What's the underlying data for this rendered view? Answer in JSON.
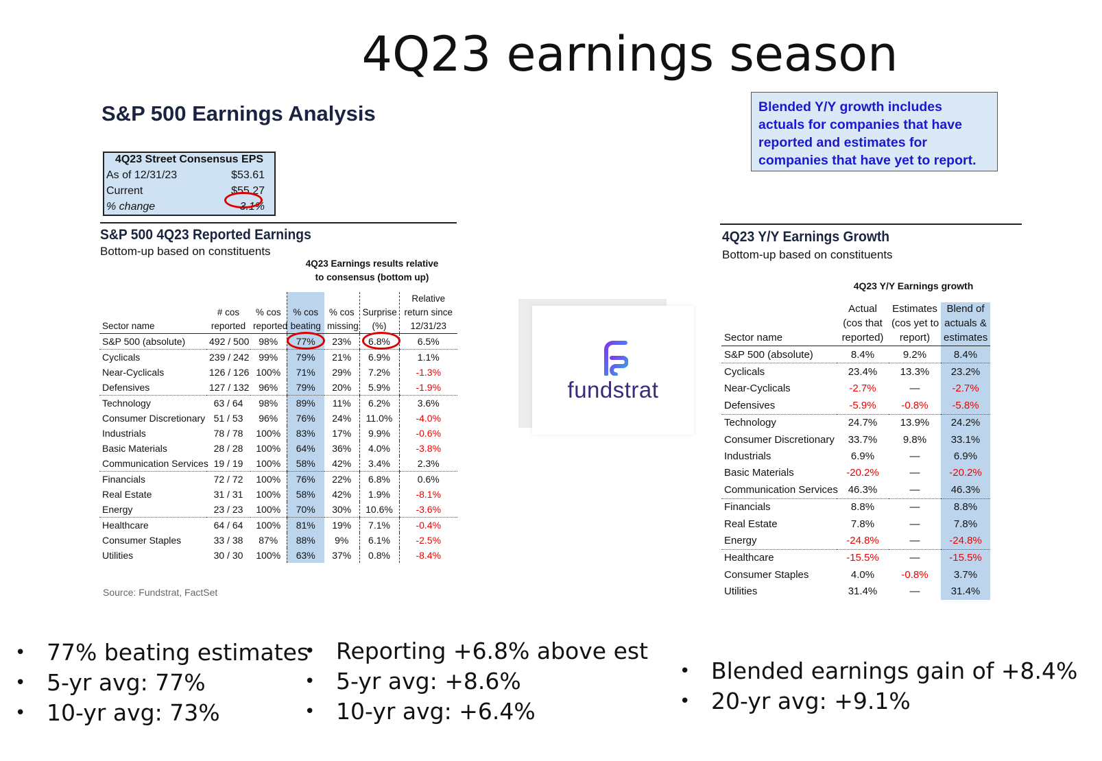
{
  "slide_title": "4Q23 earnings season",
  "left": {
    "analysis_title": "S&P 500 Earnings Analysis",
    "consensus": {
      "header": "4Q23 Street Consensus EPS",
      "rows": [
        {
          "label": "As of 12/31/23",
          "value": "$53.61"
        },
        {
          "label": "Current",
          "value": "$55.27"
        },
        {
          "label": "% change",
          "value": "3.1%"
        }
      ]
    },
    "reported": {
      "title": "S&P 500 4Q23 Reported Earnings",
      "subtitle": "Bottom-up based on constituents",
      "group_header": "4Q23 Earnings results relative to consensus (bottom up)",
      "group_header_line1": "4Q23 Earnings results relative",
      "group_header_line2": "to consensus (bottom up)",
      "columns": [
        {
          "l1": "",
          "l2": "",
          "l3": "Sector name"
        },
        {
          "l1": "",
          "l2": "# cos",
          "l3": "reported"
        },
        {
          "l1": "",
          "l2": "% cos",
          "l3": "reported"
        },
        {
          "l1": "",
          "l2": "% cos",
          "l3": "beating"
        },
        {
          "l1": "",
          "l2": "% cos",
          "l3": "missing"
        },
        {
          "l1": "",
          "l2": "Surprise",
          "l3": "(%)"
        },
        {
          "l1": "Relative",
          "l2": "return since",
          "l3": "12/31/23"
        }
      ],
      "rows": [
        {
          "sector": "S&P 500 (absolute)",
          "reported": "492 / 500",
          "pct_reported": "98%",
          "beating": "77%",
          "missing": "23%",
          "surprise": "6.8%",
          "rel_return": "6.5%",
          "neg": false
        },
        {
          "sector": "Cyclicals",
          "reported": "239 / 242",
          "pct_reported": "99%",
          "beating": "79%",
          "missing": "21%",
          "surprise": "6.9%",
          "rel_return": "1.1%",
          "neg": false
        },
        {
          "sector": "Near-Cyclicals",
          "reported": "126 / 126",
          "pct_reported": "100%",
          "beating": "71%",
          "missing": "29%",
          "surprise": "7.2%",
          "rel_return": "-1.3%",
          "neg": true
        },
        {
          "sector": "Defensives",
          "reported": "127 / 132",
          "pct_reported": "96%",
          "beating": "79%",
          "missing": "20%",
          "surprise": "5.9%",
          "rel_return": "-1.9%",
          "neg": true
        },
        {
          "sector": "Technology",
          "reported": "63 / 64",
          "pct_reported": "98%",
          "beating": "89%",
          "missing": "11%",
          "surprise": "6.2%",
          "rel_return": "3.6%",
          "neg": false
        },
        {
          "sector": "Consumer Discretionary",
          "reported": "51 / 53",
          "pct_reported": "96%",
          "beating": "76%",
          "missing": "24%",
          "surprise": "11.0%",
          "rel_return": "-4.0%",
          "neg": true
        },
        {
          "sector": "Industrials",
          "reported": "78 / 78",
          "pct_reported": "100%",
          "beating": "83%",
          "missing": "17%",
          "surprise": "9.9%",
          "rel_return": "-0.6%",
          "neg": true
        },
        {
          "sector": "Basic Materials",
          "reported": "28 / 28",
          "pct_reported": "100%",
          "beating": "64%",
          "missing": "36%",
          "surprise": "4.0%",
          "rel_return": "-3.8%",
          "neg": true
        },
        {
          "sector": "Communication Services",
          "reported": "19 / 19",
          "pct_reported": "100%",
          "beating": "58%",
          "missing": "42%",
          "surprise": "3.4%",
          "rel_return": "2.3%",
          "neg": false
        },
        {
          "sector": "Financials",
          "reported": "72 / 72",
          "pct_reported": "100%",
          "beating": "76%",
          "missing": "22%",
          "surprise": "6.8%",
          "rel_return": "0.6%",
          "neg": false
        },
        {
          "sector": "Real Estate",
          "reported": "31 / 31",
          "pct_reported": "100%",
          "beating": "58%",
          "missing": "42%",
          "surprise": "1.9%",
          "rel_return": "-8.1%",
          "neg": true
        },
        {
          "sector": "Energy",
          "reported": "23 / 23",
          "pct_reported": "100%",
          "beating": "70%",
          "missing": "30%",
          "surprise": "10.6%",
          "rel_return": "-3.6%",
          "neg": true
        },
        {
          "sector": "Healthcare",
          "reported": "64 / 64",
          "pct_reported": "100%",
          "beating": "81%",
          "missing": "19%",
          "surprise": "7.1%",
          "rel_return": "-0.4%",
          "neg": true
        },
        {
          "sector": "Consumer Staples",
          "reported": "33 / 38",
          "pct_reported": "87%",
          "beating": "88%",
          "missing": "9%",
          "surprise": "6.1%",
          "rel_return": "-2.5%",
          "neg": true
        },
        {
          "sector": "Utilities",
          "reported": "30 / 30",
          "pct_reported": "100%",
          "beating": "63%",
          "missing": "37%",
          "surprise": "0.8%",
          "rel_return": "-8.4%",
          "neg": true
        }
      ],
      "separator_before": [
        1,
        4,
        9,
        12
      ],
      "source": "Source: Fundstrat, FactSet"
    }
  },
  "logo": {
    "text": "fundstrat",
    "icon": "fundstrat-f-logo"
  },
  "right": {
    "note": "Blended Y/Y growth includes actuals for companies that have reported and estimates for companies that have yet to report.",
    "growth": {
      "title": "4Q23 Y/Y Earnings Growth",
      "subtitle": "Bottom-up based on constituents",
      "group_header": "4Q23 Y/Y Earnings growth",
      "columns": [
        {
          "l1": "",
          "l2": "",
          "l3": "Sector name"
        },
        {
          "l1": "Actual",
          "l2": "(cos that",
          "l3": "reported)"
        },
        {
          "l1": "Estimates",
          "l2": "(cos yet to",
          "l3": "report)"
        },
        {
          "l1": "Blend of",
          "l2": "actuals &",
          "l3": "estimates"
        }
      ],
      "rows": [
        {
          "sector": "S&P 500 (absolute)",
          "actual": "8.4%",
          "estimates": "9.2%",
          "blend": "8.4%",
          "neg_a": false,
          "neg_e": false,
          "neg_b": false
        },
        {
          "sector": "Cyclicals",
          "actual": "23.4%",
          "estimates": "13.3%",
          "blend": "23.2%",
          "neg_a": false,
          "neg_e": false,
          "neg_b": false
        },
        {
          "sector": "Near-Cyclicals",
          "actual": "-2.7%",
          "estimates": "—",
          "blend": "-2.7%",
          "neg_a": true,
          "neg_e": false,
          "neg_b": true
        },
        {
          "sector": "Defensives",
          "actual": "-5.9%",
          "estimates": "-0.8%",
          "blend": "-5.8%",
          "neg_a": true,
          "neg_e": true,
          "neg_b": true
        },
        {
          "sector": "Technology",
          "actual": "24.7%",
          "estimates": "13.9%",
          "blend": "24.2%",
          "neg_a": false,
          "neg_e": false,
          "neg_b": false
        },
        {
          "sector": "Consumer Discretionary",
          "actual": "33.7%",
          "estimates": "9.8%",
          "blend": "33.1%",
          "neg_a": false,
          "neg_e": false,
          "neg_b": false
        },
        {
          "sector": "Industrials",
          "actual": "6.9%",
          "estimates": "—",
          "blend": "6.9%",
          "neg_a": false,
          "neg_e": false,
          "neg_b": false
        },
        {
          "sector": "Basic Materials",
          "actual": "-20.2%",
          "estimates": "—",
          "blend": "-20.2%",
          "neg_a": true,
          "neg_e": false,
          "neg_b": true
        },
        {
          "sector": "Communication Services",
          "actual": "46.3%",
          "estimates": "—",
          "blend": "46.3%",
          "neg_a": false,
          "neg_e": false,
          "neg_b": false
        },
        {
          "sector": "Financials",
          "actual": "8.8%",
          "estimates": "—",
          "blend": "8.8%",
          "neg_a": false,
          "neg_e": false,
          "neg_b": false
        },
        {
          "sector": "Real Estate",
          "actual": "7.8%",
          "estimates": "—",
          "blend": "7.8%",
          "neg_a": false,
          "neg_e": false,
          "neg_b": false
        },
        {
          "sector": "Energy",
          "actual": "-24.8%",
          "estimates": "—",
          "blend": "-24.8%",
          "neg_a": true,
          "neg_e": false,
          "neg_b": true
        },
        {
          "sector": "Healthcare",
          "actual": "-15.5%",
          "estimates": "—",
          "blend": "-15.5%",
          "neg_a": true,
          "neg_e": false,
          "neg_b": true
        },
        {
          "sector": "Consumer Staples",
          "actual": "4.0%",
          "estimates": "-0.8%",
          "blend": "3.7%",
          "neg_a": false,
          "neg_e": true,
          "neg_b": false
        },
        {
          "sector": "Utilities",
          "actual": "31.4%",
          "estimates": "—",
          "blend": "31.4%",
          "neg_a": false,
          "neg_e": false,
          "neg_b": false
        }
      ],
      "separator_before": [
        1,
        4,
        9,
        12
      ]
    }
  },
  "bullets": {
    "col1": [
      "77% beating estimates",
      "5-yr avg: 77%",
      "10-yr avg: 73%"
    ],
    "col2": [
      "Reporting +6.8% above est",
      "5-yr avg: +8.6%",
      "10-yr avg: +6.4%"
    ],
    "col3": [
      "Blended earnings gain of +8.4%",
      "20-yr avg: +9.1%"
    ]
  },
  "colors": {
    "highlight": "#bcd5ec",
    "negative": "#e00000",
    "note_text": "#1a1acc",
    "circle": "#dd0000"
  }
}
